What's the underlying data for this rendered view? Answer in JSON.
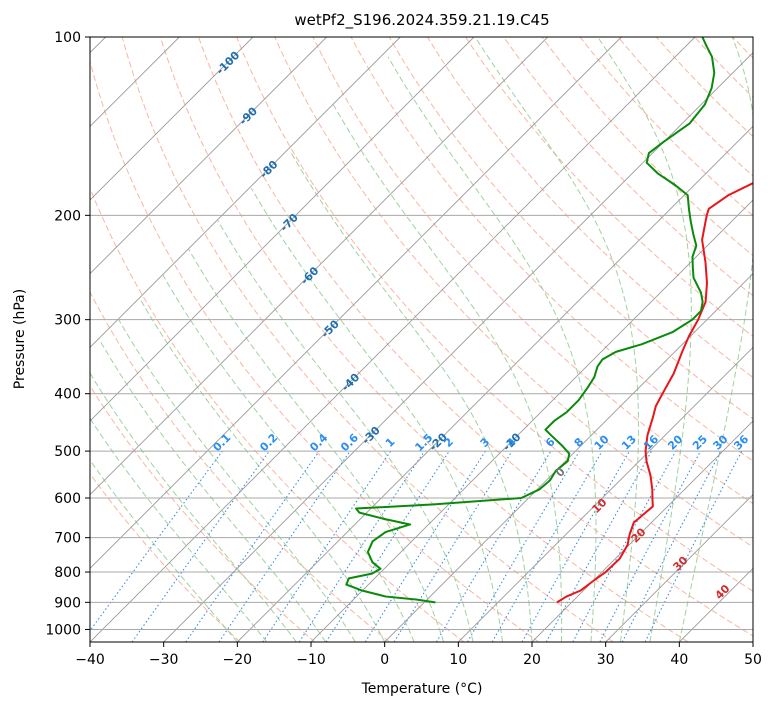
{
  "chart_data": {
    "type": "line",
    "subtype": "skew-t log-p diagram",
    "title": "wetPf2_S196.2024.359.21.19.C45",
    "xlabel": "Temperature (°C)",
    "ylabel": "Pressure (hPa)",
    "xlim": [
      -40,
      50
    ],
    "ylim": [
      1050,
      100
    ],
    "y_scale": "log",
    "x_ticks": [
      -40,
      -30,
      -20,
      -10,
      0,
      10,
      20,
      30,
      40,
      50
    ],
    "x_tick_labels": [
      "−40",
      "−30",
      "−20",
      "−10",
      "0",
      "10",
      "20",
      "30",
      "40",
      "50"
    ],
    "y_ticks": [
      100,
      200,
      300,
      400,
      500,
      600,
      700,
      800,
      900,
      1000
    ],
    "y_tick_labels": [
      "100",
      "200",
      "300",
      "400",
      "500",
      "600",
      "700",
      "800",
      "900",
      "1000"
    ],
    "grid": true,
    "colors": {
      "temperature": "#e8161b",
      "dewpoint": "#0a8a0a",
      "isotherm": "#9a9a9a",
      "isobar": "#a8a8a8",
      "dry_adiabat": "#f4a58a",
      "moist_adiabat": "#8fca8f",
      "mixing_ratio": "#3a8fe0",
      "isotherm_label": "#1f6eb0",
      "mixing_label": "#2a8ef0",
      "moist_label": "#d62b2b",
      "text": "#000000"
    },
    "series": [
      {
        "name": "",
        "role": "temperature",
        "points": [
          {
            "p": 900,
            "t": 18.0
          },
          {
            "p": 880,
            "t": 18.5
          },
          {
            "p": 860,
            "t": 19.6
          },
          {
            "p": 830,
            "t": 20.0
          },
          {
            "p": 800,
            "t": 20.5
          },
          {
            "p": 760,
            "t": 20.6
          },
          {
            "p": 720,
            "t": 19.8
          },
          {
            "p": 690,
            "t": 18.6
          },
          {
            "p": 660,
            "t": 17.6
          },
          {
            "p": 640,
            "t": 17.8
          },
          {
            "p": 620,
            "t": 18.0
          },
          {
            "p": 600,
            "t": 16.8
          },
          {
            "p": 580,
            "t": 15.6
          },
          {
            "p": 550,
            "t": 13.5
          },
          {
            "p": 520,
            "t": 11.0
          },
          {
            "p": 500,
            "t": 9.5
          },
          {
            "p": 470,
            "t": 7.6
          },
          {
            "p": 440,
            "t": 6.0
          },
          {
            "p": 420,
            "t": 4.8
          },
          {
            "p": 400,
            "t": 4.0
          },
          {
            "p": 370,
            "t": 2.8
          },
          {
            "p": 340,
            "t": 1.0
          },
          {
            "p": 320,
            "t": -0.2
          },
          {
            "p": 300,
            "t": -1.2
          },
          {
            "p": 280,
            "t": -2.6
          },
          {
            "p": 260,
            "t": -5.0
          },
          {
            "p": 240,
            "t": -8.0
          },
          {
            "p": 220,
            "t": -11.5
          },
          {
            "p": 200,
            "t": -14.2
          },
          {
            "p": 195,
            "t": -14.8
          },
          {
            "p": 185,
            "t": -14.0
          },
          {
            "p": 175,
            "t": -12.0
          },
          {
            "p": 165,
            "t": -11.5
          },
          {
            "p": 155,
            "t": -12.5
          },
          {
            "p": 145,
            "t": -14.5
          },
          {
            "p": 135,
            "t": -17.0
          },
          {
            "p": 125,
            "t": -20.5
          },
          {
            "p": 118,
            "t": -24.0
          },
          {
            "p": 110,
            "t": -28.0
          },
          {
            "p": 100,
            "t": -31.0
          }
        ]
      },
      {
        "name": "",
        "role": "dewpoint",
        "points": [
          {
            "p": 900,
            "t": 1.5
          },
          {
            "p": 890,
            "t": -1.5
          },
          {
            "p": 880,
            "t": -6.0
          },
          {
            "p": 860,
            "t": -10.0
          },
          {
            "p": 840,
            "t": -13.0
          },
          {
            "p": 820,
            "t": -13.5
          },
          {
            "p": 805,
            "t": -11.0
          },
          {
            "p": 790,
            "t": -10.5
          },
          {
            "p": 770,
            "t": -12.5
          },
          {
            "p": 740,
            "t": -14.5
          },
          {
            "p": 710,
            "t": -15.3
          },
          {
            "p": 685,
            "t": -14.8
          },
          {
            "p": 665,
            "t": -12.5
          },
          {
            "p": 650,
            "t": -17.0
          },
          {
            "p": 635,
            "t": -21.0
          },
          {
            "p": 625,
            "t": -22.0
          },
          {
            "p": 615,
            "t": -12.0
          },
          {
            "p": 600,
            "t": -1.0
          },
          {
            "p": 580,
            "t": 0.3
          },
          {
            "p": 560,
            "t": 0.5
          },
          {
            "p": 540,
            "t": 0.0
          },
          {
            "p": 520,
            "t": 0.3
          },
          {
            "p": 505,
            "t": -0.5
          },
          {
            "p": 490,
            "t": -2.5
          },
          {
            "p": 470,
            "t": -5.5
          },
          {
            "p": 460,
            "t": -7.0
          },
          {
            "p": 445,
            "t": -7.0
          },
          {
            "p": 430,
            "t": -6.5
          },
          {
            "p": 410,
            "t": -6.5
          },
          {
            "p": 390,
            "t": -7.0
          },
          {
            "p": 375,
            "t": -7.5
          },
          {
            "p": 360,
            "t": -8.5
          },
          {
            "p": 350,
            "t": -8.8
          },
          {
            "p": 340,
            "t": -8.0
          },
          {
            "p": 330,
            "t": -5.5
          },
          {
            "p": 315,
            "t": -3.0
          },
          {
            "p": 300,
            "t": -2.0
          },
          {
            "p": 290,
            "t": -2.0
          },
          {
            "p": 280,
            "t": -3.0
          },
          {
            "p": 270,
            "t": -4.5
          },
          {
            "p": 255,
            "t": -7.5
          },
          {
            "p": 245,
            "t": -9.0
          },
          {
            "p": 235,
            "t": -10.5
          },
          {
            "p": 225,
            "t": -11.5
          },
          {
            "p": 215,
            "t": -13.5
          },
          {
            "p": 205,
            "t": -15.5
          },
          {
            "p": 195,
            "t": -17.5
          },
          {
            "p": 185,
            "t": -19.5
          },
          {
            "p": 178,
            "t": -22.5
          },
          {
            "p": 170,
            "t": -26.5
          },
          {
            "p": 163,
            "t": -29.5
          },
          {
            "p": 157,
            "t": -30.5
          },
          {
            "p": 150,
            "t": -30.0
          },
          {
            "p": 140,
            "t": -29.0
          },
          {
            "p": 130,
            "t": -29.5
          },
          {
            "p": 122,
            "t": -30.8
          },
          {
            "p": 115,
            "t": -32.5
          },
          {
            "p": 108,
            "t": -35.0
          },
          {
            "p": 104,
            "t": -37.0
          },
          {
            "p": 100,
            "t": -39.0
          }
        ]
      }
    ],
    "isotherm_labels": [
      "-100",
      "-90",
      "-80",
      "-70",
      "-60",
      "-50",
      "-40",
      "-30",
      "-20",
      "-10"
    ],
    "isotherm_label_values": [
      -100,
      -90,
      -80,
      -70,
      -60,
      -50,
      -40,
      -30,
      -20,
      -10
    ],
    "mixing_ratio_labels": [
      "0.1",
      "0.2",
      "0.4",
      "0.6",
      "1",
      "1.5",
      "2",
      "3",
      "4",
      "6",
      "8",
      "10",
      "13",
      "16",
      "20",
      "25",
      "30",
      "36"
    ],
    "mixing_ratio_values": [
      0.1,
      0.2,
      0.4,
      0.6,
      1,
      1.5,
      2,
      3,
      4,
      6,
      8,
      10,
      13,
      16,
      20,
      25,
      30,
      36
    ],
    "moist_adiabat_labels": [
      "0",
      "10",
      "20",
      "30",
      "40"
    ],
    "moist_adiabat_values": [
      0,
      10,
      20,
      30,
      40
    ]
  }
}
